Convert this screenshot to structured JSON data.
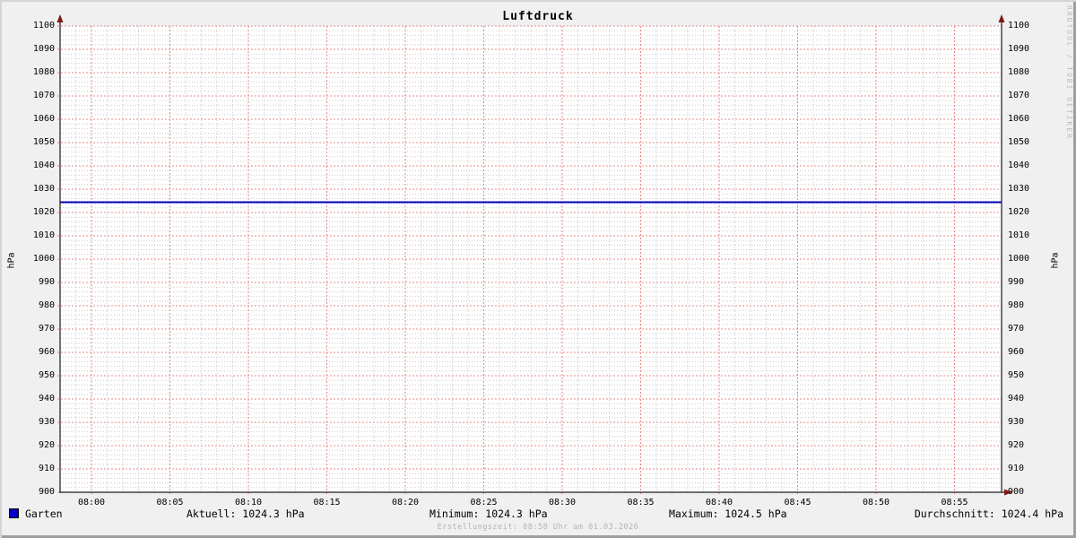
{
  "title": "Luftdruck",
  "watermark": "RRDTOOL / TOBI OETIKER",
  "footer": "Erstellungszeit: 08:58 Uhr am 01.03.2026",
  "axis": {
    "y_label_left": "hPa",
    "y_label_right": "hPa"
  },
  "legend": {
    "series_label": "Garten",
    "series_color": "#0000c8",
    "stats": [
      {
        "label": "Aktuell",
        "value": "1024.3 hPa",
        "text": "Aktuell: 1024.3 hPa"
      },
      {
        "label": "Minimum",
        "value": "1024.3 hPa",
        "text": "Minimum: 1024.3 hPa"
      },
      {
        "label": "Maximum",
        "value": "1024.5 hPa",
        "text": "Maximum: 1024.5 hPa"
      },
      {
        "label": "Durchschnitt",
        "value": "1024.4 hPa",
        "text": "Durchschnitt: 1024.4 hPa"
      }
    ]
  },
  "chart_data": {
    "type": "line",
    "title": "Luftdruck",
    "ylabel": "hPa",
    "ylim": [
      900,
      1100
    ],
    "y_major_step": 10,
    "y_minor_step": 2,
    "x_ticks": [
      "08:00",
      "08:05",
      "08:10",
      "08:15",
      "08:20",
      "08:25",
      "08:30",
      "08:35",
      "08:40",
      "08:45",
      "08:50",
      "08:55"
    ],
    "x_total_minutes": 60,
    "x_first_major_offset_minutes": 2,
    "x_major_every_minutes": 5,
    "x_minor_every_minutes": 1,
    "grid": true,
    "legend_position": "bottom",
    "series": [
      {
        "name": "Garten",
        "color": "#0000c8",
        "flat_value_hpa": 1024.4,
        "aktuell": 1024.3,
        "minimum": 1024.3,
        "maximum": 1024.5,
        "durchschnitt": 1024.4
      }
    ],
    "colors": {
      "canvas": "#ffffff",
      "background": "#f0f0f0",
      "major_grid": "#e48a8a",
      "minor_grid": "#cccccc",
      "axis": "#1a1a1a",
      "arrow": "#801717",
      "line": "#0000b4"
    }
  }
}
